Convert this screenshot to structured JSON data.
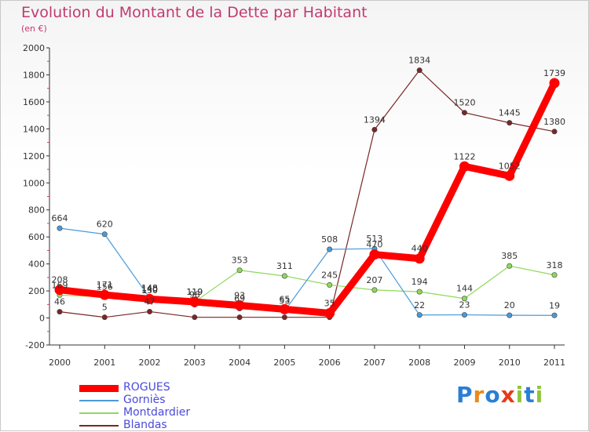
{
  "chart_data": {
    "type": "line",
    "title": "Evolution du Montant de la Dette par Habitant",
    "subtitle": "(en €)",
    "categories": [
      "2000",
      "2001",
      "2002",
      "2003",
      "2004",
      "2005",
      "2006",
      "2007",
      "2008",
      "2009",
      "2010",
      "2011"
    ],
    "ylim": [
      -200,
      2000
    ],
    "yticks": [
      -200,
      0,
      200,
      400,
      600,
      800,
      1000,
      1200,
      1400,
      1600,
      1800,
      2000
    ],
    "grid": false,
    "legend_position": "bottom-left",
    "series": [
      {
        "name": "ROGUES",
        "color": "#ff0000",
        "values": [
          208,
          171,
          140,
          119,
          93,
          65,
          35,
          470,
          440,
          1122,
          1052,
          1739
        ],
        "labels": [
          "208",
          "171",
          "140",
          "119",
          "93",
          "65",
          "35",
          "470",
          "440",
          "1122",
          "1052",
          "1739"
        ]
      },
      {
        "name": "Gorniès",
        "color": "#4a9ad8",
        "values": [
          664,
          620,
          148,
          98,
          69,
          53,
          508,
          513,
          22,
          23,
          20,
          19
        ],
        "labels": [
          "664",
          "620",
          "148",
          "98",
          "69",
          "53",
          "508",
          "513",
          "22",
          "23",
          "20",
          "19"
        ]
      },
      {
        "name": "Montdardier",
        "color": "#8fd85a",
        "values": [
          169,
          156,
          130,
          119,
          353,
          311,
          245,
          207,
          194,
          144,
          385,
          318
        ],
        "labels": [
          "169",
          "156",
          "130",
          "119",
          "353",
          "311",
          "245",
          "207",
          "194",
          "144",
          "385",
          "318"
        ]
      },
      {
        "name": "Blandas",
        "color": "#7a2626",
        "values": [
          46,
          5,
          47,
          5,
          5,
          5,
          5,
          1394,
          1834,
          1520,
          1445,
          1380
        ],
        "labels": [
          "46",
          "5",
          "47",
          "",
          "",
          "",
          "",
          "1394",
          "1834",
          "1520",
          "1445",
          "1380"
        ]
      }
    ]
  },
  "logo": {
    "text": "Proxiti",
    "letters": [
      "P",
      "r",
      "o",
      "x",
      "i",
      "t",
      "i"
    ],
    "colors": [
      "#2a7fd4",
      "#e88a1a",
      "#2a7fd4",
      "#e83a1a",
      "#8fc63a",
      "#2a7fd4",
      "#8fc63a"
    ]
  }
}
